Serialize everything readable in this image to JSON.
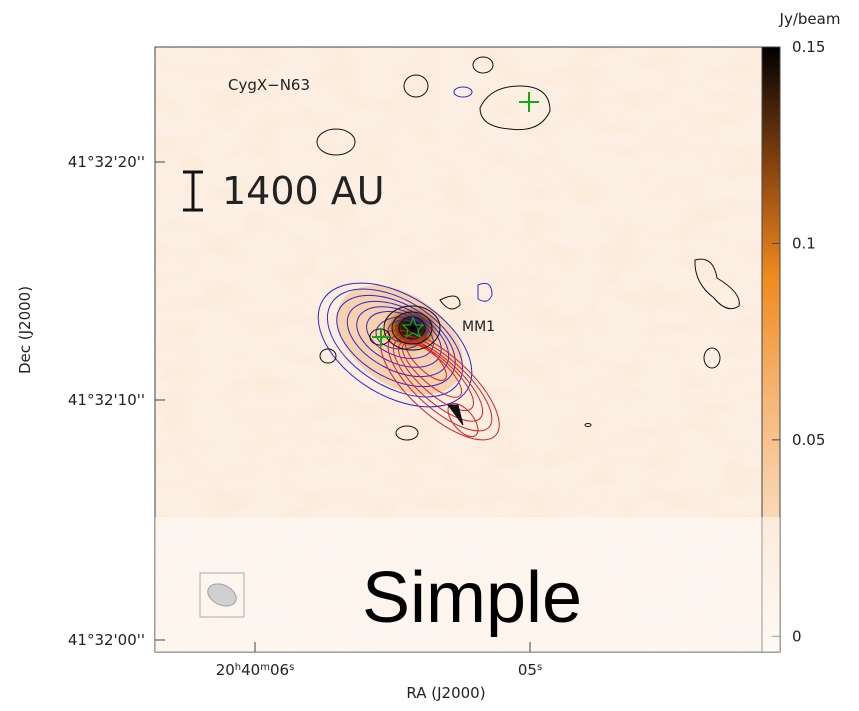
{
  "labels": {
    "field": "CygX−N63",
    "scale_bar": "1400 AU",
    "source": "MM1",
    "overlay": "Simple",
    "x_axis": "RA (J2000)",
    "y_axis": "Dec (J2000)",
    "colorbar_unit": "Jy/beam"
  },
  "y_ticks": [
    "41°32'20''",
    "41°32'10''",
    "41°32'00''"
  ],
  "x_ticks": [
    [
      "20",
      "h",
      "40",
      "m",
      "06",
      "s"
    ],
    [
      "05",
      "s"
    ]
  ],
  "colorbar": {
    "lim": [
      -0.004,
      0.15
    ],
    "ticks": [
      0.15,
      0.1,
      0.05,
      0
    ]
  }
}
